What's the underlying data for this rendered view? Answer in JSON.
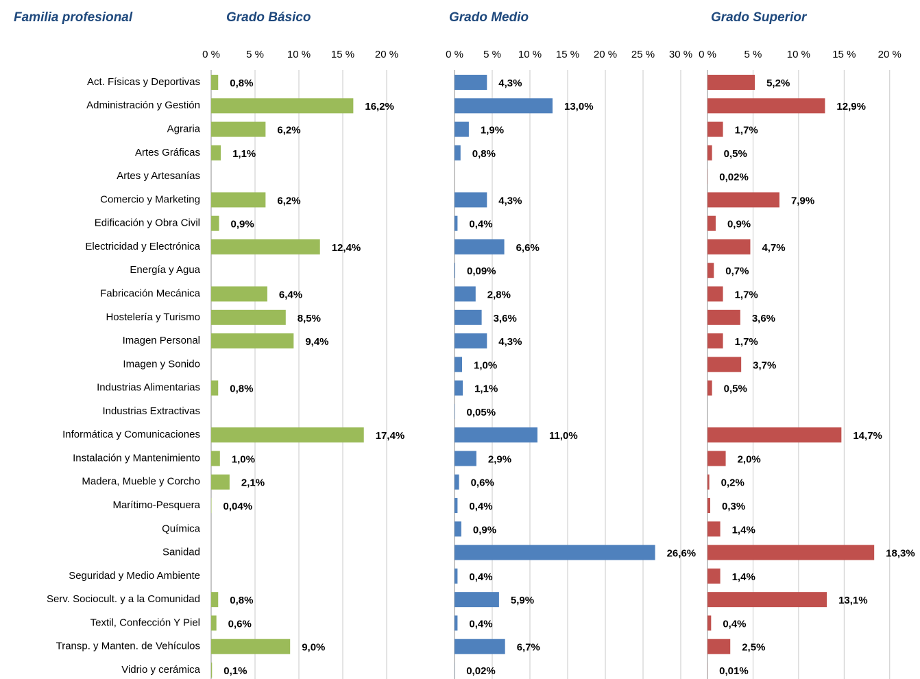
{
  "chart_data": [
    {
      "type": "bar",
      "orientation": "horizontal",
      "title": "Grado Básico",
      "y_label": "Familia profesional",
      "color": "#9bbb59",
      "grid": true,
      "categories": [
        "Act. Físicas y Deportivas",
        "Administración y Gestión",
        "Agraria",
        "Artes Gráficas",
        "Artes y Artesanías",
        "Comercio y Marketing",
        "Edificación y Obra Civil",
        "Electricidad y Electrónica",
        "Energía y Agua",
        "Fabricación Mecánica",
        "Hostelería y Turismo",
        "Imagen Personal",
        "Imagen y Sonido",
        "Industrias Alimentarias",
        "Industrias Extractivas",
        "Informática y Comunicaciones",
        "Instalación y Mantenimiento",
        "Madera, Mueble y Corcho",
        "Marítimo-Pesquera",
        "Química",
        "Sanidad",
        "Seguridad y Medio Ambiente",
        "Serv. Sociocult. y a la Comunidad",
        "Textil, Confección Y Piel",
        "Transp. y Manten. de Vehículos",
        "Vidrio y cerámica"
      ],
      "values": [
        0.8,
        16.2,
        6.2,
        1.1,
        null,
        6.2,
        0.9,
        12.4,
        null,
        6.4,
        8.5,
        9.4,
        null,
        0.8,
        null,
        17.4,
        1.0,
        2.1,
        0.04,
        null,
        null,
        null,
        0.8,
        0.6,
        9.0,
        0.1
      ],
      "value_labels": [
        "0,8%",
        "16,2%",
        "6,2%",
        "1,1%",
        null,
        "6,2%",
        "0,9%",
        "12,4%",
        null,
        "6,4%",
        "8,5%",
        "9,4%",
        null,
        "0,8%",
        null,
        "17,4%",
        "1,0%",
        "2,1%",
        "0,04%",
        null,
        null,
        null,
        "0,8%",
        "0,6%",
        "9,0%",
        "0,1%"
      ],
      "xlim": [
        0,
        22.5
      ],
      "xticks": [
        {
          "value": 0,
          "label": "0 %"
        },
        {
          "value": 5,
          "label": "5 %"
        },
        {
          "value": 10,
          "label": "10 %"
        },
        {
          "value": 15,
          "label": "15 %"
        },
        {
          "value": 20,
          "label": "20 %"
        }
      ]
    },
    {
      "type": "bar",
      "orientation": "horizontal",
      "title": "Grado Medio",
      "color": "#4f81bd",
      "grid": true,
      "values": [
        4.3,
        13.0,
        1.9,
        0.8,
        null,
        4.3,
        0.4,
        6.6,
        0.09,
        2.8,
        3.6,
        4.3,
        1.0,
        1.1,
        0.05,
        11.0,
        2.9,
        0.6,
        0.4,
        0.9,
        26.6,
        0.4,
        5.9,
        0.4,
        6.7,
        0.02
      ],
      "value_labels": [
        "4,3%",
        "13,0%",
        "1,9%",
        "0,8%",
        null,
        "4,3%",
        "0,4%",
        "6,6%",
        "0,09%",
        "2,8%",
        "3,6%",
        "4,3%",
        "1,0%",
        "1,1%",
        "0,05%",
        "11,0%",
        "2,9%",
        "0,6%",
        "0,4%",
        "0,9%",
        "26,6%",
        "0,4%",
        "5,9%",
        "0,4%",
        "6,7%",
        "0,02%"
      ],
      "xlim": [
        0,
        30
      ],
      "xticks": [
        {
          "value": 0,
          "label": "0 %"
        },
        {
          "value": 5,
          "label": "5 %"
        },
        {
          "value": 10,
          "label": "10 %"
        },
        {
          "value": 15,
          "label": "15 %"
        },
        {
          "value": 20,
          "label": "20 %"
        },
        {
          "value": 25,
          "label": "25 %"
        },
        {
          "value": 30,
          "label": "30 %"
        }
      ]
    },
    {
      "type": "bar",
      "orientation": "horizontal",
      "title": "Grado Superior",
      "color": "#c0504d",
      "grid": true,
      "values": [
        5.2,
        12.9,
        1.7,
        0.5,
        0.02,
        7.9,
        0.9,
        4.7,
        0.7,
        1.7,
        3.6,
        1.7,
        3.7,
        0.5,
        null,
        14.7,
        2.0,
        0.2,
        0.3,
        1.4,
        18.3,
        1.4,
        13.1,
        0.4,
        2.5,
        0.01
      ],
      "value_labels": [
        "5,2%",
        "12,9%",
        "1,7%",
        "0,5%",
        "0,02%",
        "7,9%",
        "0,9%",
        "4,7%",
        "0,7%",
        "1,7%",
        "3,6%",
        "1,7%",
        "3,7%",
        "0,5%",
        null,
        "14,7%",
        "2,0%",
        "0,2%",
        "0,3%",
        "1,4%",
        "18,3%",
        "1,4%",
        "13,1%",
        "0,4%",
        "2,5%",
        "0,01%"
      ],
      "xlim": [
        0,
        22.5
      ],
      "xticks": [
        {
          "value": 0,
          "label": "0 %"
        },
        {
          "value": 5,
          "label": "5 %"
        },
        {
          "value": 10,
          "label": "10 %"
        },
        {
          "value": 15,
          "label": "15 %"
        },
        {
          "value": 20,
          "label": "20 %"
        }
      ]
    }
  ]
}
